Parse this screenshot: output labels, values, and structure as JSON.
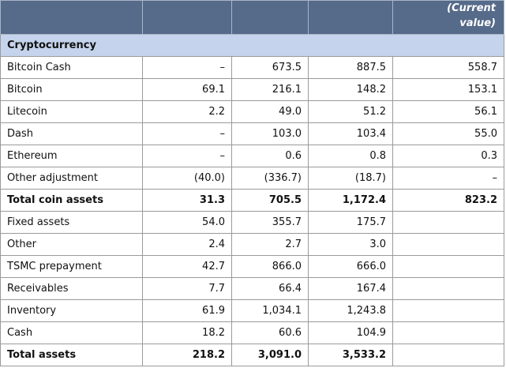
{
  "header": {
    "current_value_line1": "(Current",
    "current_value_line2": "value)"
  },
  "section_title": "Cryptocurrency",
  "rows": [
    {
      "label": "Bitcoin Cash",
      "c1": "–",
      "c2": "673.5",
      "c3": "887.5",
      "c4": "558.7",
      "bold": false
    },
    {
      "label": "Bitcoin",
      "c1": "69.1",
      "c2": "216.1",
      "c3": "148.2",
      "c4": "153.1",
      "bold": false
    },
    {
      "label": "Litecoin",
      "c1": "2.2",
      "c2": "49.0",
      "c3": "51.2",
      "c4": "56.1",
      "bold": false
    },
    {
      "label": "Dash",
      "c1": "–",
      "c2": "103.0",
      "c3": "103.4",
      "c4": "55.0",
      "bold": false
    },
    {
      "label": "Ethereum",
      "c1": "–",
      "c2": "0.6",
      "c3": "0.8",
      "c4": "0.3",
      "bold": false
    },
    {
      "label": "Other adjustment",
      "c1": "(40.0)",
      "c2": "(336.7)",
      "c3": "(18.7)",
      "c4": "–",
      "bold": false
    },
    {
      "label": "Total coin assets",
      "c1": "31.3",
      "c2": "705.5",
      "c3": "1,172.4",
      "c4": "823.2",
      "bold": true
    },
    {
      "label": "Fixed assets",
      "c1": "54.0",
      "c2": "355.7",
      "c3": "175.7",
      "c4": "",
      "bold": false
    },
    {
      "label": "Other",
      "c1": "2.4",
      "c2": "2.7",
      "c3": "3.0",
      "c4": "",
      "bold": false
    },
    {
      "label": "TSMC prepayment",
      "c1": "42.7",
      "c2": "866.0",
      "c3": "666.0",
      "c4": "",
      "bold": false
    },
    {
      "label": "Receivables",
      "c1": "7.7",
      "c2": "66.4",
      "c3": "167.4",
      "c4": "",
      "bold": false
    },
    {
      "label": "Inventory",
      "c1": "61.9",
      "c2": "1,034.1",
      "c3": "1,243.8",
      "c4": "",
      "bold": false
    },
    {
      "label": "Cash",
      "c1": "18.2",
      "c2": "60.6",
      "c3": "104.9",
      "c4": "",
      "bold": false
    },
    {
      "label": "Total assets",
      "c1": "218.2",
      "c2": "3,091.0",
      "c3": "3,533.2",
      "c4": "",
      "bold": true
    }
  ],
  "colors": {
    "header_bg": "#566a8a",
    "section_bg": "#c5d4ec"
  }
}
